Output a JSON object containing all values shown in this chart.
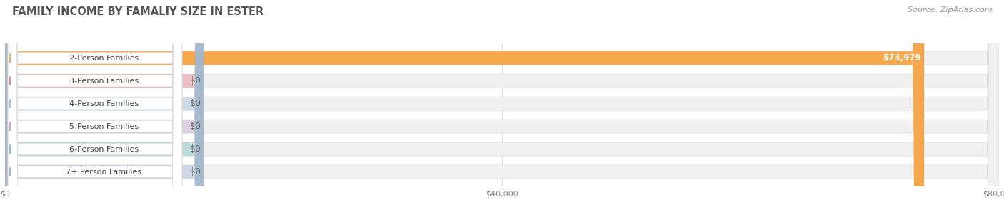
{
  "title": "FAMILY INCOME BY FAMALIY SIZE IN ESTER",
  "source": "Source: ZipAtlas.com",
  "categories": [
    "2-Person Families",
    "3-Person Families",
    "4-Person Families",
    "5-Person Families",
    "6-Person Families",
    "7+ Person Families"
  ],
  "values": [
    73979,
    0,
    0,
    0,
    0,
    0
  ],
  "bar_colors": [
    "#F5A84B",
    "#E8878A",
    "#A8C4E0",
    "#C4A8D0",
    "#7DC5BE",
    "#A8B8D8"
  ],
  "value_labels": [
    "$73,979",
    "$0",
    "$0",
    "$0",
    "$0",
    "$0"
  ],
  "xlim": [
    0,
    80000
  ],
  "xtick_values": [
    0,
    40000,
    80000
  ],
  "xtick_labels": [
    "$0",
    "$40,000",
    "$80,000"
  ],
  "background_color": "#ffffff",
  "bar_bg_color": "#eeeeee",
  "title_fontsize": 10.5,
  "source_fontsize": 8,
  "label_fontsize": 8,
  "value_fontsize": 8.5
}
